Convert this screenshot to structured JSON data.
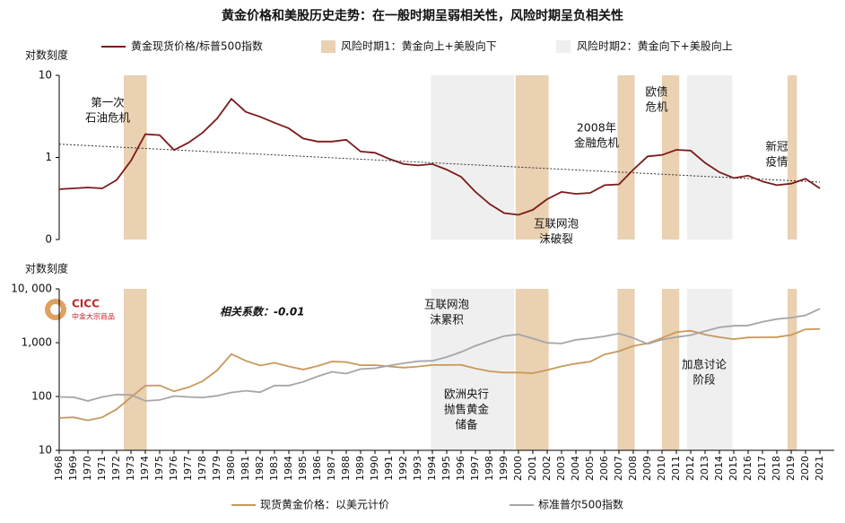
{
  "title": "黄金价格和美股历史走势：在一般时期呈弱相关性，风险时期呈负相关性",
  "logo": {
    "mark": "CICC",
    "name": "中金大宗商品"
  },
  "chart_data": [
    {
      "type": "line",
      "y_label": "对数刻度",
      "log_scale": true,
      "ylim": [
        0.1,
        10
      ],
      "yticks": [
        {
          "value": 0.1,
          "label": "0"
        },
        1,
        10
      ],
      "xlim": [
        1968,
        2022
      ],
      "x": [
        1968,
        1969,
        1970,
        1971,
        1972,
        1973,
        1974,
        1975,
        1976,
        1977,
        1978,
        1979,
        1980,
        1981,
        1982,
        1983,
        1984,
        1985,
        1986,
        1987,
        1988,
        1989,
        1990,
        1991,
        1992,
        1993,
        1994,
        1995,
        1996,
        1997,
        1998,
        1999,
        2000,
        2001,
        2002,
        2003,
        2004,
        2005,
        2006,
        2007,
        2008,
        2009,
        2010,
        2011,
        2012,
        2013,
        2014,
        2015,
        2016,
        2017,
        2018,
        2019,
        2020,
        2021
      ],
      "series": [
        {
          "name": "黄金现货价格/标普500指数",
          "color": "#7b1a1a",
          "values": [
            0.41,
            0.42,
            0.43,
            0.42,
            0.53,
            0.91,
            1.92,
            1.87,
            1.23,
            1.51,
            2.01,
            2.97,
            5.17,
            3.59,
            3.13,
            2.65,
            2.26,
            1.7,
            1.56,
            1.56,
            1.64,
            1.18,
            1.14,
            0.96,
            0.83,
            0.8,
            0.83,
            0.71,
            0.58,
            0.38,
            0.27,
            0.21,
            0.2,
            0.23,
            0.31,
            0.38,
            0.36,
            0.37,
            0.46,
            0.47,
            0.71,
            1.03,
            1.07,
            1.24,
            1.21,
            0.86,
            0.66,
            0.56,
            0.6,
            0.51,
            0.46,
            0.48,
            0.55,
            0.42
          ]
        }
      ],
      "trend": {
        "x": [
          1968,
          2021
        ],
        "values": [
          1.45,
          0.5
        ],
        "color": "#333333"
      },
      "regions": [
        {
          "name": "风险时期1：黄金向上+美股向下",
          "color": "#e9d1b2",
          "spans": [
            [
              1972.5,
              1974.1
            ],
            [
              1999.8,
              2002.1
            ],
            [
              2006.9,
              2008.1
            ],
            [
              2010.0,
              2011.2
            ],
            [
              2018.75,
              2019.4
            ]
          ]
        },
        {
          "name": "风险时期2：黄金向下+美股向上",
          "color": "#efefef",
          "spans": [
            [
              1993.9,
              1999.7
            ],
            [
              2011.75,
              2014.9
            ]
          ]
        }
      ],
      "annotations": [
        {
          "lines": [
            "第一次",
            "石油危机"
          ]
        },
        {
          "lines": [
            "2008年",
            "金融危机"
          ]
        },
        {
          "lines": [
            "欧债",
            "危机"
          ]
        },
        {
          "lines": [
            "新冠",
            "疫情"
          ]
        },
        {
          "lines": [
            "互联网泡",
            "沫破裂"
          ]
        }
      ]
    },
    {
      "type": "line",
      "y_label": "对数刻度",
      "log_scale": true,
      "ylim": [
        10,
        10000
      ],
      "yticks": [
        10,
        100,
        {
          "value": 1000,
          "label": "1,000"
        },
        {
          "value": 10000,
          "label": "10, 000"
        }
      ],
      "xlim": [
        1968,
        2022
      ],
      "xticks": [
        1968,
        1969,
        1970,
        1971,
        1972,
        1973,
        1974,
        1975,
        1976,
        1977,
        1978,
        1979,
        1980,
        1981,
        1982,
        1983,
        1984,
        1985,
        1986,
        1987,
        1988,
        1989,
        1990,
        1991,
        1992,
        1993,
        1994,
        1995,
        1996,
        1997,
        1998,
        1999,
        2000,
        2001,
        2002,
        2003,
        2004,
        2005,
        2006,
        2007,
        2008,
        2009,
        2010,
        2011,
        2012,
        2013,
        2014,
        2015,
        2016,
        2017,
        2018,
        2019,
        2020,
        2021
      ],
      "x": [
        1968,
        1969,
        1970,
        1971,
        1972,
        1973,
        1974,
        1975,
        1976,
        1977,
        1978,
        1979,
        1980,
        1981,
        1982,
        1983,
        1984,
        1985,
        1986,
        1987,
        1988,
        1989,
        1990,
        1991,
        1992,
        1993,
        1994,
        1995,
        1996,
        1997,
        1998,
        1999,
        2000,
        2001,
        2002,
        2003,
        2004,
        2005,
        2006,
        2007,
        2008,
        2009,
        2010,
        2011,
        2012,
        2013,
        2014,
        2015,
        2016,
        2017,
        2018,
        2019,
        2020,
        2021
      ],
      "series": [
        {
          "name": "现货黄金价格：以美元计价",
          "color": "#c8995a",
          "values": [
            40,
            41,
            36,
            41,
            58,
            97,
            159,
            161,
            125,
            148,
            193,
            306,
            615,
            460,
            376,
            424,
            361,
            317,
            368,
            447,
            437,
            381,
            383,
            362,
            344,
            360,
            384,
            384,
            388,
            331,
            294,
            279,
            279,
            271,
            310,
            363,
            409,
            445,
            604,
            695,
            872,
            972,
            1225,
            1572,
            1669,
            1411,
            1266,
            1160,
            1251,
            1257,
            1268,
            1393,
            1770,
            1799
          ]
        },
        {
          "name": "标准普尔500指数",
          "color": "#a6a6a6",
          "values": [
            98,
            97,
            83,
            98,
            109,
            107,
            83,
            86,
            102,
            98,
            96,
            103,
            119,
            128,
            120,
            160,
            160,
            187,
            236,
            287,
            266,
            323,
            335,
            376,
            416,
            452,
            460,
            542,
            671,
            873,
            1086,
            1327,
            1427,
            1194,
            994,
            965,
            1131,
            1207,
            1311,
            1477,
            1221,
            947,
            1140,
            1268,
            1380,
            1643,
            1931,
            2061,
            2092,
            2449,
            2746,
            2913,
            3218,
            4266
          ]
        }
      ],
      "annotations": [
        {
          "lines": [
            "相关系数：-0.01"
          ]
        },
        {
          "lines": [
            "互联网泡",
            "沫累积"
          ]
        },
        {
          "lines": [
            "欧洲央行",
            "抛售黄金",
            "储备"
          ]
        },
        {
          "lines": [
            "加息讨论",
            "阶段"
          ]
        }
      ]
    }
  ]
}
